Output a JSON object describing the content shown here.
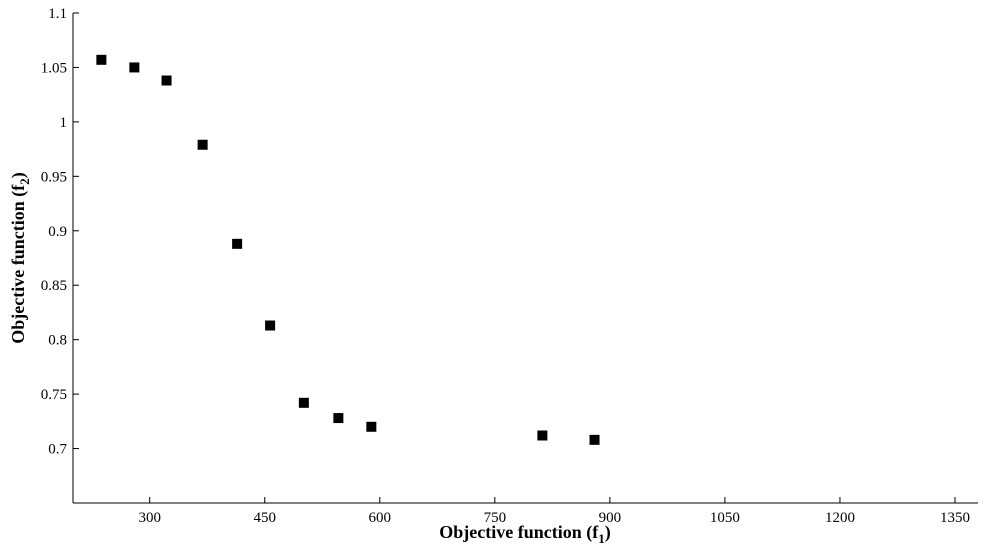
{
  "chart_data": {
    "type": "scatter",
    "xlabel": "Objective function (f",
    "xlabel_sub": "1",
    "xlabel_end": ")",
    "ylabel": "Objective function (f",
    "ylabel_sub": "2",
    "ylabel_end": ")",
    "xlim": [
      200,
      1380
    ],
    "ylim": [
      0.65,
      1.1
    ],
    "xticks": [
      300,
      450,
      600,
      750,
      900,
      1050,
      1200,
      1350
    ],
    "xtick_labels": [
      "300",
      "450",
      "600",
      "750",
      "900",
      "1050",
      "1200",
      "1350"
    ],
    "yticks": [
      0.7,
      0.75,
      0.8,
      0.85,
      0.9,
      0.95,
      1.0,
      1.05,
      1.1
    ],
    "ytick_labels": [
      "0.7",
      "0.75",
      "0.8",
      "0.85",
      "0.9",
      "0.95",
      "1",
      "1.05",
      "1.1"
    ],
    "grid": false,
    "marker": "square",
    "marker_color": "#000000",
    "series": [
      {
        "points": [
          {
            "x": 237,
            "y": 1.057
          },
          {
            "x": 280,
            "y": 1.05
          },
          {
            "x": 322,
            "y": 1.038
          },
          {
            "x": 369,
            "y": 0.979
          },
          {
            "x": 414,
            "y": 0.888
          },
          {
            "x": 457,
            "y": 0.813
          },
          {
            "x": 501,
            "y": 0.742
          },
          {
            "x": 546,
            "y": 0.728
          },
          {
            "x": 589,
            "y": 0.72
          },
          {
            "x": 812,
            "y": 0.712
          },
          {
            "x": 880,
            "y": 0.708
          }
        ]
      }
    ]
  }
}
